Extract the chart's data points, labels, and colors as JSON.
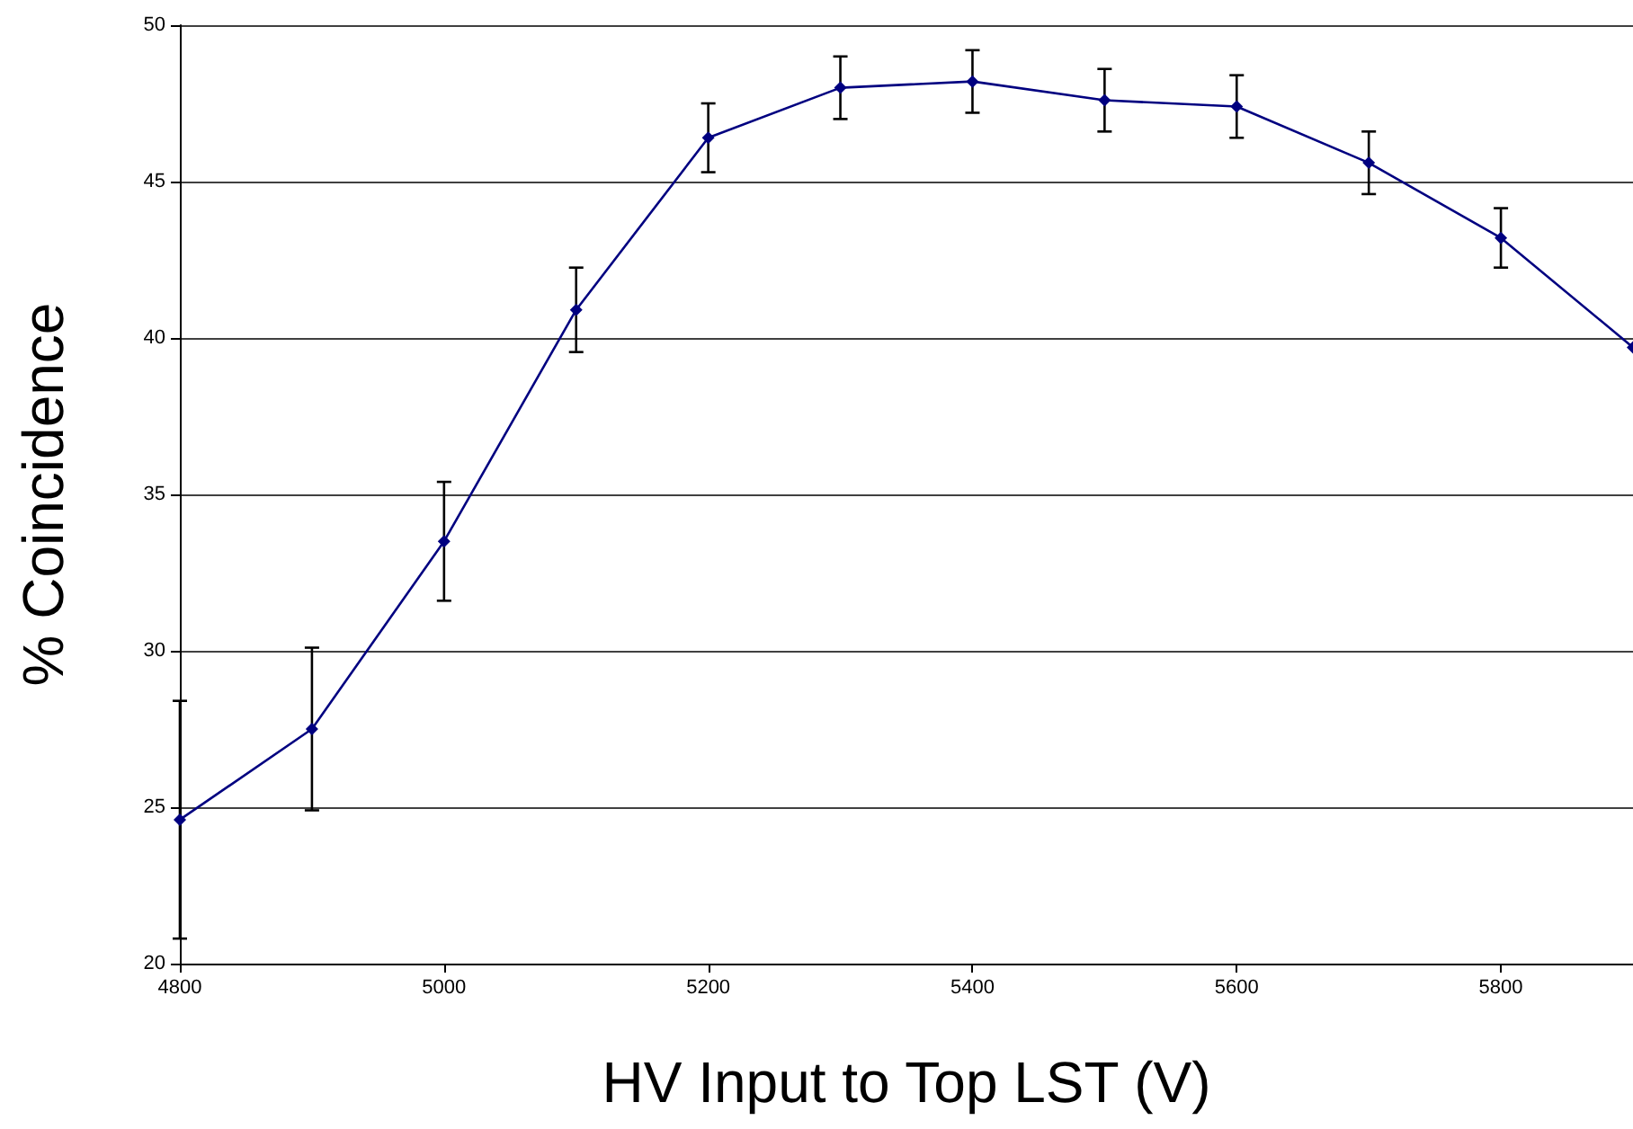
{
  "chart_data": {
    "type": "line",
    "xlabel": "HV Input to Top LST (V)",
    "ylabel": "% Coincidence",
    "x": [
      4800,
      4900,
      5000,
      5100,
      5200,
      5300,
      5400,
      5500,
      5600,
      5700,
      5800,
      5900
    ],
    "series": [
      {
        "color": "#000080",
        "values": [
          24.6,
          27.5,
          33.5,
          40.9,
          46.4,
          48.0,
          48.2,
          47.6,
          47.4,
          45.6,
          43.2,
          39.7
        ],
        "errors": [
          3.8,
          2.6,
          1.9,
          1.35,
          1.1,
          1.0,
          1.0,
          1.0,
          1.0,
          1.0,
          0.95,
          null
        ]
      }
    ],
    "xlim": [
      4800,
      5900
    ],
    "xticks": [
      4800,
      5000,
      5200,
      5400,
      5600,
      5800
    ],
    "ylim": [
      20,
      50
    ],
    "yticks": [
      20,
      25,
      30,
      35,
      40,
      45,
      50
    ],
    "grid": "y",
    "marker": "diamond",
    "line_style": "solid"
  }
}
